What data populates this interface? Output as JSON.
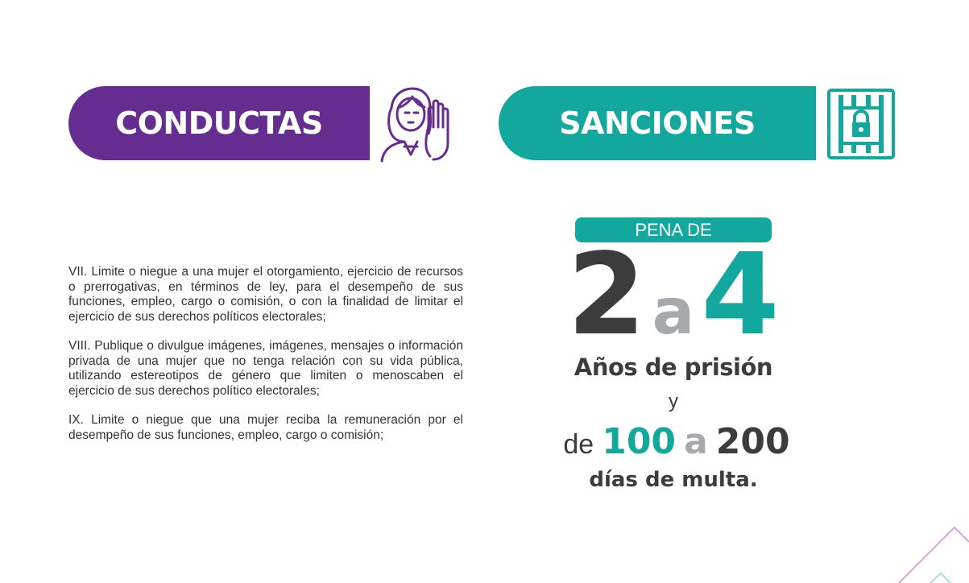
{
  "header": {
    "conductas_label": "CONDUCTAS",
    "sanciones_label": "SANCIONES",
    "conductas_icon": "woman-stop-hand-icon",
    "sanciones_icon": "jail-lock-icon"
  },
  "conductas": [
    "VII. Limite o niegue a una mujer el otorgamiento, ejercicio de recursos o prerrogativas, en términos de ley, para el desempeño de sus funciones, empleo, cargo o comisión, o con la finalidad de limitar el ejercicio de sus derechos políticos electorales;",
    "VIII. Publique o divulgue imágenes, imágenes, mensajes o información privada de una mujer que no tenga relación con su vida pública, utilizando estereotipos de género que limiten o menoscaben el ejercicio de sus derechos político electorales;",
    "IX. Limite o niegue que una mujer reciba la remuneración por el desempeño de sus funciones, empleo, cargo o comisión;"
  ],
  "sanciones": {
    "pena_label": "PENA DE",
    "prison_min": "2",
    "connector": "a",
    "prison_max": "4",
    "prison_unit": "Años de prisión",
    "and": "y",
    "fine_prefix": "de",
    "fine_min": "100",
    "fine_max": "200",
    "fine_unit": "días de multa."
  },
  "colors": {
    "purple": "#662d91",
    "teal": "#13a89e",
    "dark": "#3c3c3c",
    "gray": "#a7a9ac"
  }
}
